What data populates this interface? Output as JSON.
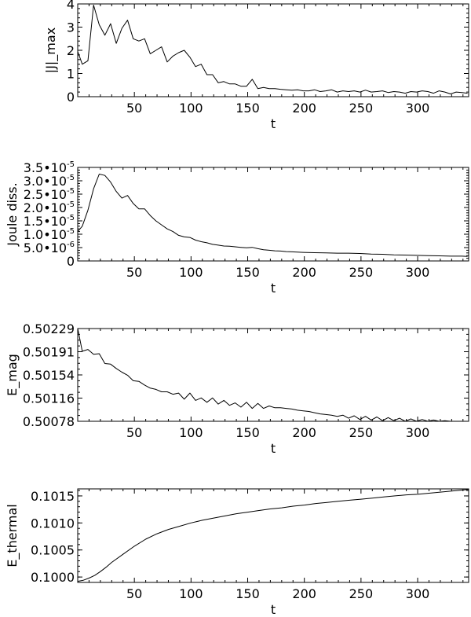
{
  "chart_data": [
    {
      "type": "line",
      "ylabel": "|J|_max",
      "xlabel": "t",
      "xlim": [
        0,
        345
      ],
      "ylim": [
        0,
        4
      ],
      "xticks": [
        "50",
        "100",
        "150",
        "200",
        "250",
        "300"
      ],
      "yticks": [
        "0",
        "1",
        "2",
        "3",
        "4"
      ],
      "series": [
        {
          "x": [
            0,
            4,
            9,
            14,
            19,
            24,
            29,
            34,
            39,
            44,
            49,
            54,
            59,
            64,
            69,
            74,
            79,
            84,
            89,
            94,
            99,
            104,
            109,
            114,
            119,
            124,
            129,
            134,
            139,
            144,
            149,
            154,
            159,
            164,
            169,
            174,
            179,
            184,
            189,
            194,
            199,
            204,
            209,
            214,
            219,
            224,
            229,
            234,
            239,
            244,
            249,
            254,
            259,
            264,
            269,
            274,
            279,
            284,
            289,
            294,
            299,
            304,
            309,
            314,
            319,
            324,
            329,
            334,
            339,
            344
          ],
          "y": [
            1.95,
            1.4,
            1.55,
            3.95,
            3.1,
            2.65,
            3.15,
            2.3,
            2.95,
            3.3,
            2.5,
            2.4,
            2.5,
            1.85,
            2.0,
            2.15,
            1.5,
            1.75,
            1.9,
            2.0,
            1.7,
            1.3,
            1.4,
            0.95,
            0.95,
            0.6,
            0.65,
            0.55,
            0.55,
            0.45,
            0.45,
            0.75,
            0.35,
            0.4,
            0.35,
            0.35,
            0.32,
            0.3,
            0.28,
            0.3,
            0.25,
            0.25,
            0.3,
            0.22,
            0.25,
            0.3,
            0.2,
            0.25,
            0.22,
            0.25,
            0.2,
            0.28,
            0.2,
            0.22,
            0.25,
            0.18,
            0.22,
            0.2,
            0.15,
            0.22,
            0.2,
            0.25,
            0.22,
            0.15,
            0.25,
            0.2,
            0.12,
            0.2,
            0.18,
            0.15
          ]
        }
      ]
    },
    {
      "type": "line",
      "ylabel": "Joule diss.",
      "xlabel": "t",
      "xlim": [
        0,
        345
      ],
      "ylim": [
        0,
        3.5e-05
      ],
      "xticks": [
        "50",
        "100",
        "150",
        "200",
        "250",
        "300"
      ],
      "yticks": [
        {
          "mant": "0",
          "exp": ""
        },
        {
          "mant": "5.0•10",
          "exp": "-6"
        },
        {
          "mant": "1.0•10",
          "exp": "-5"
        },
        {
          "mant": "1.5•10",
          "exp": "-5"
        },
        {
          "mant": "2.0•10",
          "exp": "-5"
        },
        {
          "mant": "2.5•10",
          "exp": "-5"
        },
        {
          "mant": "3.0•10",
          "exp": "-5"
        },
        {
          "mant": "3.5•10",
          "exp": "-5"
        }
      ],
      "series": [
        {
          "x": [
            0,
            4,
            9,
            14,
            19,
            24,
            29,
            34,
            39,
            44,
            49,
            54,
            59,
            64,
            69,
            74,
            79,
            84,
            89,
            94,
            99,
            104,
            109,
            114,
            119,
            124,
            129,
            134,
            139,
            144,
            149,
            154,
            159,
            164,
            169,
            174,
            179,
            184,
            189,
            194,
            199,
            209,
            219,
            229,
            239,
            249,
            259,
            269,
            279,
            289,
            299,
            309,
            319,
            329,
            339,
            344
          ],
          "y": [
            1.1e-05,
            1.3e-05,
            1.9e-05,
            2.7e-05,
            3.25e-05,
            3.2e-05,
            2.95e-05,
            2.6e-05,
            2.35e-05,
            2.45e-05,
            2.15e-05,
            1.95e-05,
            1.95e-05,
            1.7e-05,
            1.5e-05,
            1.35e-05,
            1.2e-05,
            1.1e-05,
            9.6e-06,
            9e-06,
            8.8e-06,
            7.8e-06,
            7.2e-06,
            6.8e-06,
            6.2e-06,
            5.9e-06,
            5.6e-06,
            5.5e-06,
            5.3e-06,
            5.1e-06,
            4.9e-06,
            5.1e-06,
            4.6e-06,
            4.2e-06,
            4e-06,
            3.8e-06,
            3.7e-06,
            3.5e-06,
            3.4e-06,
            3.3e-06,
            3.2e-06,
            3.1e-06,
            3e-06,
            2.9e-06,
            2.9e-06,
            2.8e-06,
            2.6e-06,
            2.5e-06,
            2.3e-06,
            2.2e-06,
            2.1e-06,
            2e-06,
            1.9e-06,
            1.8e-06,
            1.8e-06,
            1.7e-06
          ]
        }
      ]
    },
    {
      "type": "line",
      "ylabel": "E_mag",
      "xlabel": "t",
      "xlim": [
        0,
        345
      ],
      "ylim": [
        0.50078,
        0.50229
      ],
      "xticks": [
        "50",
        "100",
        "150",
        "200",
        "250",
        "300"
      ],
      "yticks": [
        "0.50078",
        "0.50116",
        "0.50154",
        "0.50191",
        "0.50229"
      ],
      "series": [
        {
          "x": [
            0,
            4,
            9,
            14,
            19,
            24,
            29,
            34,
            39,
            44,
            49,
            54,
            59,
            64,
            69,
            74,
            79,
            84,
            89,
            94,
            99,
            104,
            109,
            114,
            119,
            124,
            129,
            134,
            139,
            144,
            149,
            154,
            159,
            164,
            169,
            174,
            179,
            184,
            189,
            194,
            199,
            204,
            209,
            214,
            219,
            224,
            229,
            234,
            239,
            244,
            249,
            254,
            259,
            264,
            269,
            274,
            279,
            284,
            289,
            294,
            299,
            304,
            309,
            314,
            319,
            324,
            329,
            334,
            339,
            344
          ],
          "y": [
            0.50229,
            0.50192,
            0.50195,
            0.50187,
            0.50188,
            0.50172,
            0.50171,
            0.50164,
            0.50158,
            0.50153,
            0.50144,
            0.50143,
            0.50137,
            0.50132,
            0.5013,
            0.50126,
            0.50126,
            0.50122,
            0.50124,
            0.50114,
            0.50124,
            0.50112,
            0.50116,
            0.50109,
            0.50116,
            0.50106,
            0.50112,
            0.50104,
            0.50108,
            0.50101,
            0.50109,
            0.50099,
            0.50107,
            0.50099,
            0.50103,
            0.501,
            0.501,
            0.50099,
            0.50098,
            0.50096,
            0.50095,
            0.50094,
            0.50092,
            0.5009,
            0.50089,
            0.50088,
            0.50086,
            0.50088,
            0.50083,
            0.50087,
            0.50081,
            0.50086,
            0.5008,
            0.50085,
            0.50079,
            0.50084,
            0.50079,
            0.50083,
            0.50078,
            0.50082,
            0.50077,
            0.50081,
            0.50077,
            0.5008,
            0.50076,
            0.50079,
            0.50076,
            0.50076,
            0.50075,
            0.50075
          ]
        }
      ]
    },
    {
      "type": "line",
      "ylabel": "E_thermal",
      "xlabel": "t",
      "xlim": [
        0,
        345
      ],
      "ylim": [
        0.0999,
        0.10163
      ],
      "xticks": [
        "50",
        "100",
        "150",
        "200",
        "250",
        "300"
      ],
      "yticks": [
        "0.1000",
        "0.1005",
        "0.1010",
        "0.1015"
      ],
      "ytickvals": [
        0.1,
        0.1005,
        0.101,
        0.1015
      ],
      "series": [
        {
          "x": [
            0,
            5,
            10,
            15,
            20,
            25,
            30,
            40,
            50,
            60,
            70,
            80,
            90,
            100,
            110,
            120,
            130,
            140,
            150,
            160,
            170,
            180,
            190,
            200,
            210,
            220,
            230,
            240,
            250,
            260,
            270,
            280,
            290,
            300,
            310,
            320,
            330,
            340,
            345
          ],
          "y": [
            0.09992,
            0.09994,
            0.09998,
            0.10003,
            0.1001,
            0.10018,
            0.10027,
            0.10042,
            0.10057,
            0.1007,
            0.1008,
            0.10088,
            0.10094,
            0.101,
            0.10105,
            0.10109,
            0.10113,
            0.10117,
            0.1012,
            0.10123,
            0.10126,
            0.10128,
            0.10131,
            0.10133,
            0.10136,
            0.10138,
            0.1014,
            0.10142,
            0.10144,
            0.10146,
            0.10148,
            0.1015,
            0.10152,
            0.10153,
            0.10155,
            0.10157,
            0.10159,
            0.10161,
            0.10162
          ]
        }
      ]
    }
  ]
}
